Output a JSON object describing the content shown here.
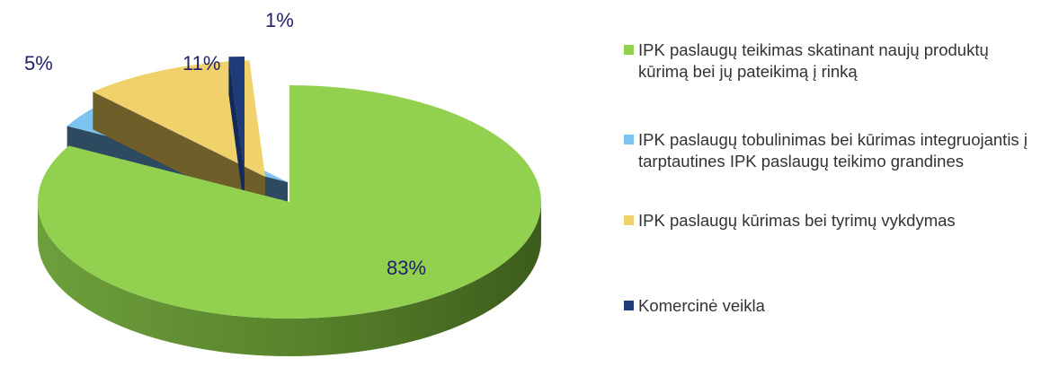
{
  "chart_data": {
    "type": "pie",
    "title": "",
    "style": "3d-exploded",
    "slices": [
      {
        "label": "IPK paslaugų teikimas skatinant naujų produktų kūrimą bei jų pateikimą į rinką",
        "value": 83,
        "display": "83%",
        "color": "#92d050",
        "side_color": "#6b9a38"
      },
      {
        "label": "IPK paslaugų tobulinimas bei kūrimas integruojantis į tarptautines IPK paslaugų teikimo grandines",
        "value": 5,
        "display": "5%",
        "color": "#7dc3ef",
        "side_color": "#2e4a60"
      },
      {
        "label": "IPK paslaugų kūrimas bei tyrimų vykdymas",
        "value": 11,
        "display": "11%",
        "color": "#f1d16b",
        "side_color": "#6e5e2a"
      },
      {
        "label": "Komercinė veikla",
        "value": 1,
        "display": "1%",
        "color": "#1f3c7a",
        "side_color": "#142a5a"
      }
    ],
    "legend": "right"
  }
}
